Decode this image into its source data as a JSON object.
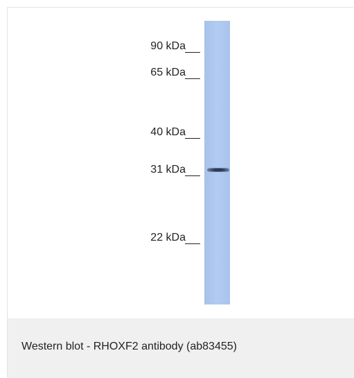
{
  "markers": [
    "90 kDa",
    "65 kDa",
    "40 kDa",
    "31 kDa",
    "22 kDa"
  ],
  "caption": "Western blot - RHOXF2 antibody (ab83455)"
}
